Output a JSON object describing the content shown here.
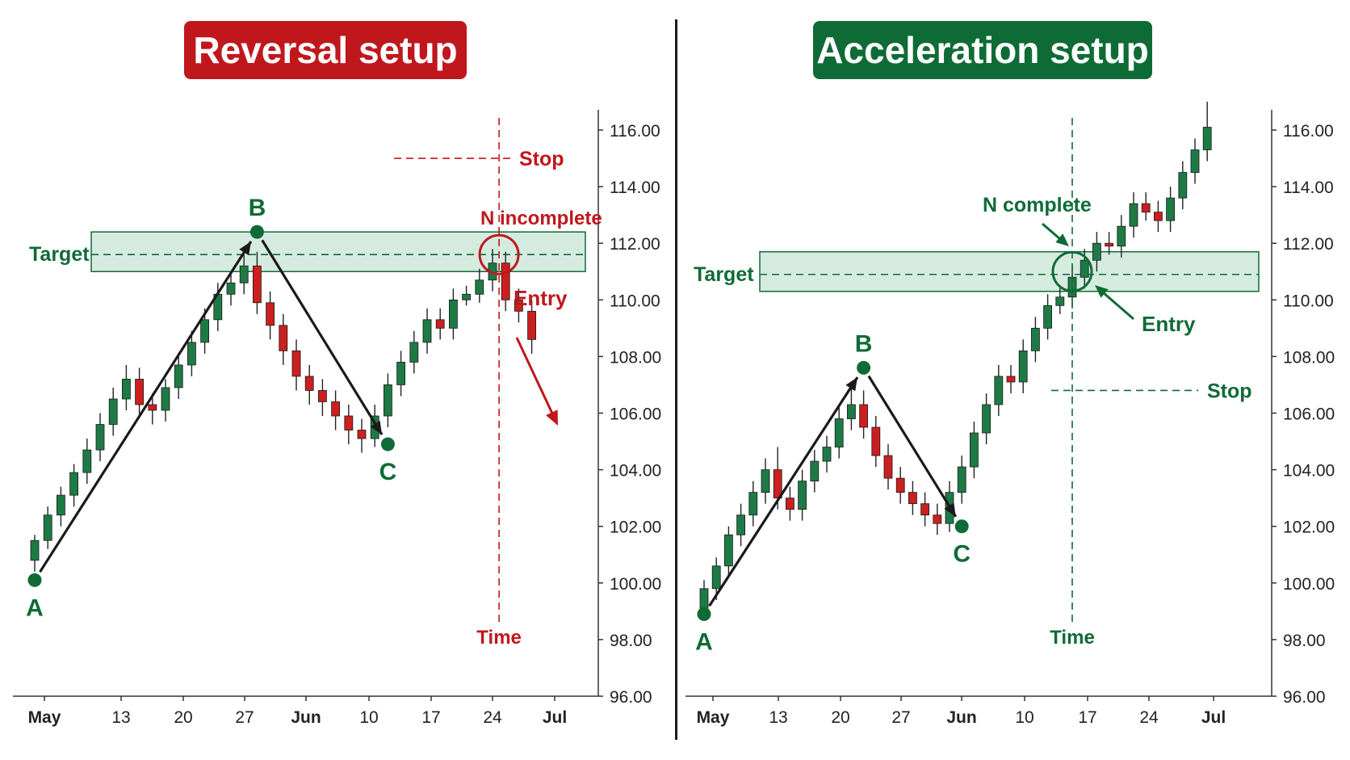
{
  "colors": {
    "red": "#c0171d",
    "green": "#0f6b36",
    "candle_up": "#1e7a45",
    "candle_down": "#cc1f1f",
    "zone_fill": "#d6ebdf",
    "axis": "#333333",
    "arrow": "#1a1a1a"
  },
  "charts": [
    {
      "title": "Reversal setup",
      "chart_data": {
        "type": "candlestick",
        "x_ticks": [
          "May",
          "13",
          "20",
          "27",
          "Jun",
          "10",
          "17",
          "24",
          "Jul"
        ],
        "y_ticks": [
          "96.00",
          "98.00",
          "100.00",
          "102.00",
          "104.00",
          "106.00",
          "108.00",
          "110.00",
          "112.00",
          "114.00",
          "116.00"
        ],
        "ylim": [
          96,
          116
        ],
        "target_zone": [
          111.0,
          112.4
        ],
        "target_level": 111.6,
        "stop_level": 115.0,
        "time_label_index": 35.5,
        "points": [
          {
            "label": "A",
            "index": 0,
            "price": 100.1
          },
          {
            "label": "B",
            "index": 17,
            "price": 112.4
          },
          {
            "label": "C",
            "index": 27,
            "price": 104.9
          }
        ],
        "annotations": [
          "Target",
          "Stop",
          "N incomplete",
          "Entry",
          "Time"
        ],
        "candles": [
          [
            100.8,
            101.5,
            100.4,
            101.7
          ],
          [
            101.5,
            102.4,
            101.2,
            102.7
          ],
          [
            102.4,
            103.1,
            102.0,
            103.4
          ],
          [
            103.1,
            103.9,
            102.7,
            104.2
          ],
          [
            103.9,
            104.7,
            103.5,
            105.1
          ],
          [
            104.7,
            105.6,
            104.3,
            106.0
          ],
          [
            105.6,
            106.5,
            105.2,
            106.9
          ],
          [
            106.5,
            107.2,
            106.1,
            107.7
          ],
          [
            107.2,
            106.3,
            105.9,
            107.6
          ],
          [
            106.3,
            106.1,
            105.6,
            106.7
          ],
          [
            106.1,
            106.9,
            105.7,
            107.2
          ],
          [
            106.9,
            107.7,
            106.5,
            108.1
          ],
          [
            107.7,
            108.5,
            107.3,
            108.9
          ],
          [
            108.5,
            109.3,
            108.1,
            109.7
          ],
          [
            109.3,
            110.2,
            108.9,
            110.6
          ],
          [
            110.2,
            110.6,
            109.8,
            110.9
          ],
          [
            110.6,
            111.2,
            110.2,
            111.6
          ],
          [
            111.2,
            109.9,
            109.5,
            111.7
          ],
          [
            109.9,
            109.1,
            108.6,
            110.3
          ],
          [
            109.1,
            108.2,
            107.7,
            109.5
          ],
          [
            108.2,
            107.3,
            106.8,
            108.6
          ],
          [
            107.3,
            106.8,
            106.3,
            107.7
          ],
          [
            106.8,
            106.4,
            105.9,
            107.2
          ],
          [
            106.4,
            105.9,
            105.4,
            106.8
          ],
          [
            105.9,
            105.4,
            104.9,
            106.3
          ],
          [
            105.4,
            105.1,
            104.6,
            105.8
          ],
          [
            105.1,
            105.9,
            104.8,
            106.3
          ],
          [
            105.9,
            107.0,
            105.5,
            107.4
          ],
          [
            107.0,
            107.8,
            106.6,
            108.2
          ],
          [
            107.8,
            108.5,
            107.4,
            108.9
          ],
          [
            108.5,
            109.3,
            108.1,
            109.7
          ],
          [
            109.3,
            109.0,
            108.6,
            109.7
          ],
          [
            109.0,
            110.0,
            108.6,
            110.4
          ],
          [
            110.0,
            110.2,
            109.8,
            110.5
          ],
          [
            110.2,
            110.7,
            109.9,
            111.1
          ],
          [
            110.7,
            111.3,
            110.3,
            111.8
          ],
          [
            111.3,
            110.0,
            109.6,
            111.7
          ],
          [
            110.0,
            109.6,
            109.2,
            110.4
          ],
          [
            109.6,
            108.6,
            108.1,
            110.0
          ]
        ]
      }
    },
    {
      "title": "Acceleration setup",
      "chart_data": {
        "type": "candlestick",
        "x_ticks": [
          "May",
          "13",
          "20",
          "27",
          "Jun",
          "10",
          "17",
          "24",
          "Jul"
        ],
        "y_ticks": [
          "96.00",
          "98.00",
          "100.00",
          "102.00",
          "104.00",
          "106.00",
          "108.00",
          "110.00",
          "112.00",
          "114.00",
          "116.00"
        ],
        "ylim": [
          96,
          116
        ],
        "target_zone": [
          110.3,
          111.7
        ],
        "target_level": 110.9,
        "stop_level": 106.8,
        "time_label_index": 30,
        "points": [
          {
            "label": "A",
            "index": 0,
            "price": 98.9
          },
          {
            "label": "B",
            "index": 13,
            "price": 107.6
          },
          {
            "label": "C",
            "index": 21,
            "price": 102.0
          }
        ],
        "annotations": [
          "Target",
          "N complete",
          "Entry",
          "Stop",
          "Time"
        ],
        "candles": [
          [
            99.1,
            99.8,
            98.7,
            100.1
          ],
          [
            99.8,
            100.6,
            99.4,
            100.9
          ],
          [
            100.6,
            101.7,
            100.2,
            102.0
          ],
          [
            101.7,
            102.4,
            101.3,
            102.8
          ],
          [
            102.4,
            103.2,
            102.0,
            103.6
          ],
          [
            103.2,
            104.0,
            102.8,
            104.4
          ],
          [
            104.0,
            103.0,
            102.6,
            104.8
          ],
          [
            103.0,
            102.6,
            102.2,
            103.4
          ],
          [
            102.6,
            103.6,
            102.2,
            104.0
          ],
          [
            103.6,
            104.3,
            103.2,
            104.7
          ],
          [
            104.3,
            104.8,
            103.9,
            105.2
          ],
          [
            104.8,
            105.8,
            104.4,
            106.2
          ],
          [
            105.8,
            106.3,
            105.4,
            107.0
          ],
          [
            106.3,
            105.5,
            105.1,
            106.8
          ],
          [
            105.5,
            104.5,
            104.1,
            105.9
          ],
          [
            104.5,
            103.7,
            103.3,
            104.9
          ],
          [
            103.7,
            103.2,
            102.8,
            104.1
          ],
          [
            103.2,
            102.8,
            102.4,
            103.6
          ],
          [
            102.8,
            102.4,
            102.0,
            103.2
          ],
          [
            102.4,
            102.1,
            101.7,
            102.8
          ],
          [
            102.1,
            103.2,
            101.8,
            103.6
          ],
          [
            103.2,
            104.1,
            102.8,
            104.5
          ],
          [
            104.1,
            105.3,
            103.7,
            105.7
          ],
          [
            105.3,
            106.3,
            104.9,
            106.7
          ],
          [
            106.3,
            107.3,
            105.9,
            107.7
          ],
          [
            107.3,
            107.1,
            106.7,
            107.7
          ],
          [
            107.1,
            108.2,
            106.7,
            108.6
          ],
          [
            108.2,
            109.0,
            107.8,
            109.4
          ],
          [
            109.0,
            109.8,
            108.6,
            110.2
          ],
          [
            109.8,
            110.1,
            109.5,
            110.5
          ],
          [
            110.1,
            110.8,
            109.7,
            111.2
          ],
          [
            110.8,
            111.4,
            110.4,
            111.8
          ],
          [
            111.4,
            112.0,
            111.0,
            112.4
          ],
          [
            112.0,
            111.9,
            111.6,
            112.4
          ],
          [
            111.9,
            112.6,
            111.5,
            113.0
          ],
          [
            112.6,
            113.4,
            112.2,
            113.8
          ],
          [
            113.4,
            113.1,
            112.8,
            113.8
          ],
          [
            113.1,
            112.8,
            112.4,
            113.5
          ],
          [
            112.8,
            113.6,
            112.4,
            114.0
          ],
          [
            113.6,
            114.5,
            113.2,
            114.9
          ],
          [
            114.5,
            115.3,
            114.1,
            115.7
          ],
          [
            115.3,
            116.1,
            114.9,
            117.0
          ]
        ]
      }
    }
  ]
}
